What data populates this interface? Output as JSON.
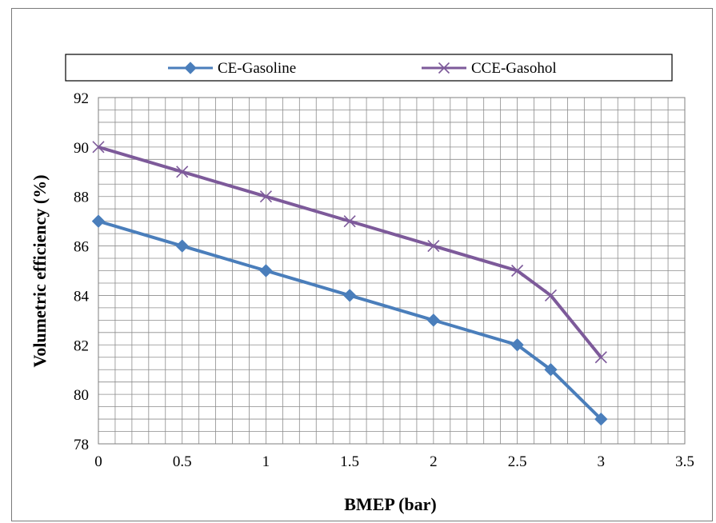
{
  "chart_data": {
    "type": "line",
    "title": "",
    "xlabel": "BMEP (bar)",
    "ylabel": "Volumetric efficiency (%)",
    "xlim": [
      0,
      3.5
    ],
    "ylim": [
      78,
      92
    ],
    "x_ticks": [
      "0",
      "0.5",
      "1",
      "1.5",
      "2",
      "2.5",
      "3",
      "3.5"
    ],
    "y_ticks": [
      "78",
      "80",
      "82",
      "84",
      "86",
      "88",
      "90",
      "92"
    ],
    "grid": true,
    "legend_position": "top",
    "series": [
      {
        "name": "CE-Gasoline",
        "marker": "diamond",
        "color": "#4a7ebb",
        "x": [
          0,
          0.5,
          1,
          1.5,
          2,
          2.5,
          2.7,
          3
        ],
        "y": [
          87,
          86,
          85,
          84,
          83,
          82,
          81,
          79
        ]
      },
      {
        "name": "CCE-Gasohol",
        "marker": "x",
        "color": "#7d5a9a",
        "x": [
          0,
          0.5,
          1,
          1.5,
          2,
          2.5,
          2.7,
          3
        ],
        "y": [
          90,
          89,
          88,
          87,
          86,
          85,
          84,
          81.5
        ]
      }
    ]
  }
}
